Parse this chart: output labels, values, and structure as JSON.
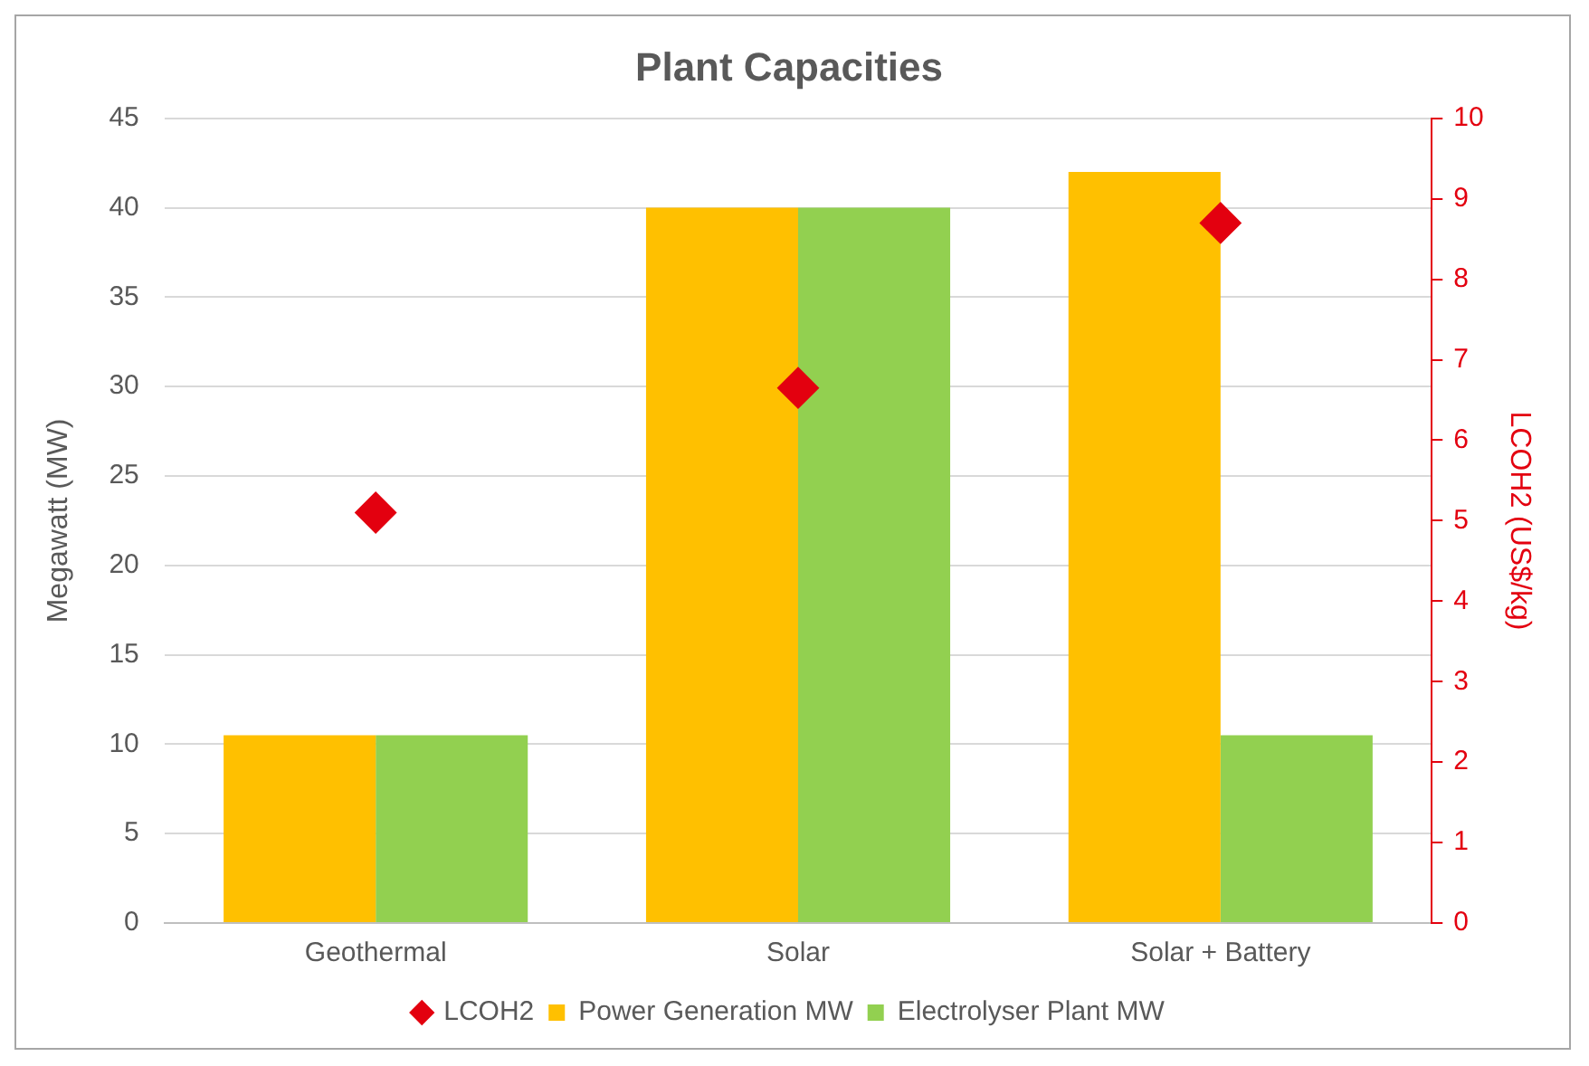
{
  "chart_data": {
    "type": "bar",
    "title": "Plant Capacities",
    "ylabel": "Megawatt (MW)",
    "y2label": "LCOH2 (US$/kg)",
    "categories": [
      "Geothermal",
      "Solar",
      "Solar + Battery"
    ],
    "series": [
      {
        "name": "Power Generation MW",
        "color": "#ffc000",
        "values": [
          10.5,
          40,
          42
        ]
      },
      {
        "name": "Electrolyser Plant MW",
        "color": "#92d050",
        "values": [
          10.5,
          40,
          10.5
        ]
      },
      {
        "name": "LCOH2",
        "type": "scatter",
        "axis": "y2",
        "color": "#e3000f",
        "x": [
          "Geothermal",
          "Solar",
          "Solar + Battery"
        ],
        "values": [
          5.1,
          6.65,
          8.7
        ]
      }
    ],
    "ylim": [
      0,
      45
    ],
    "yticks": [
      0,
      5,
      10,
      15,
      20,
      25,
      30,
      35,
      40,
      45
    ],
    "y2lim": [
      0,
      10
    ],
    "y2ticks": [
      0,
      1,
      2,
      3,
      4,
      5,
      6,
      7,
      8,
      9,
      10
    ],
    "grid": "y",
    "legend": "bottom",
    "marker": "diamond"
  }
}
